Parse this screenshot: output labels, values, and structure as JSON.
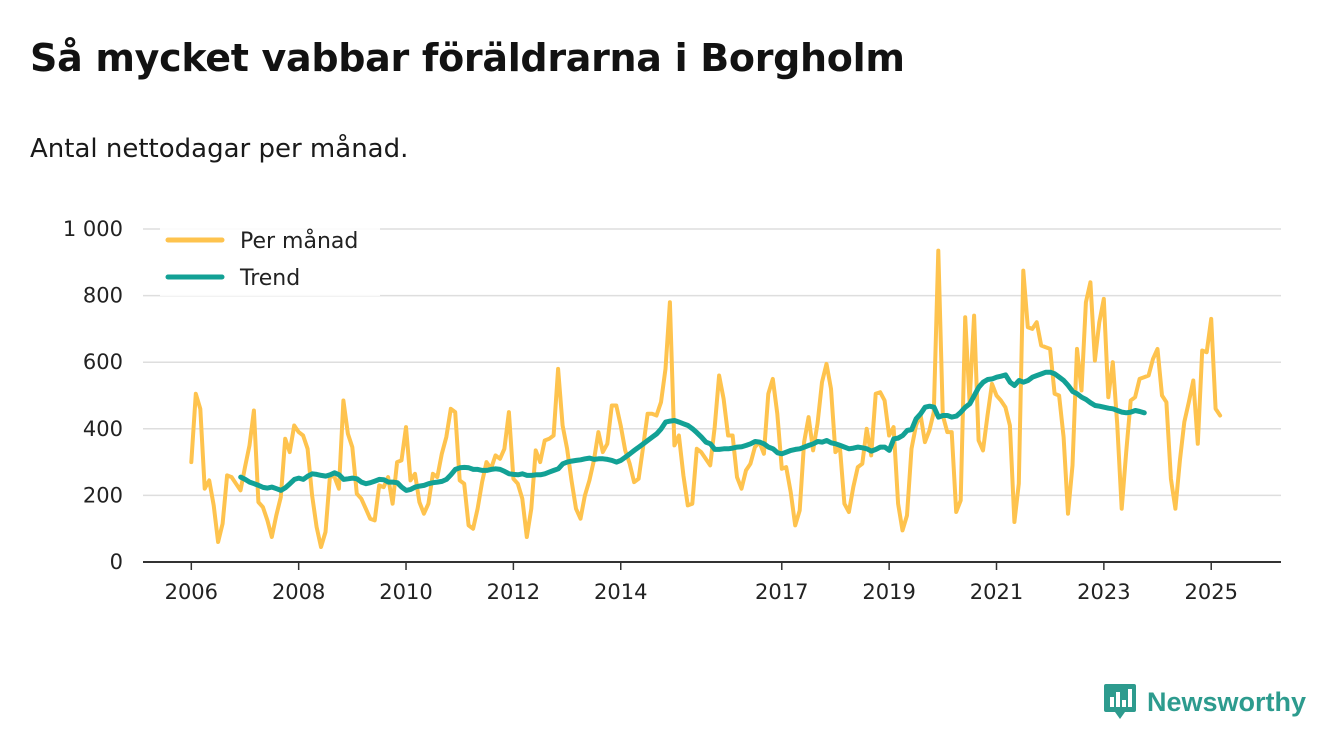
{
  "header": {
    "title": "Så mycket vabbar föräldrarna i Borgholm",
    "subtitle": "Antal nettodagar per månad."
  },
  "brand": {
    "name": "Newsworthy",
    "icon": "chart-bubble-icon"
  },
  "colors": {
    "per_month": "#fec34e",
    "trend": "#12a195",
    "grid": "#dedede",
    "axis": "#333333",
    "brand": "#2d9b8e"
  },
  "chart_data": {
    "type": "line",
    "title": "Så mycket vabbar föräldrarna i Borgholm",
    "subtitle": "Antal nettodagar per månad.",
    "xlabel": "",
    "ylabel": "",
    "xlim": [
      2005.1,
      2026.3
    ],
    "ylim": [
      0,
      1000
    ],
    "y_ticks": [
      0,
      200,
      400,
      600,
      800,
      1000
    ],
    "y_tick_labels": [
      "0",
      "200",
      "400",
      "600",
      "800",
      "1 000"
    ],
    "x_ticks": [
      2006,
      2008,
      2010,
      2012,
      2014,
      2017,
      2019,
      2021,
      2023,
      2025
    ],
    "x_tick_labels": [
      "2006",
      "2008",
      "2010",
      "2012",
      "2014",
      "2017",
      "2019",
      "2021",
      "2023",
      "2025"
    ],
    "grid": true,
    "legend": {
      "position": "top-left",
      "entries": [
        "Per månad",
        "Trend"
      ]
    },
    "series": [
      {
        "name": "Per månad",
        "x_start": 2006.0,
        "step": 0.08333,
        "values": [
          300,
          505,
          460,
          220,
          245,
          170,
          60,
          115,
          260,
          255,
          235,
          215,
          285,
          350,
          455,
          180,
          165,
          125,
          75,
          140,
          195,
          370,
          330,
          410,
          390,
          380,
          340,
          200,
          105,
          45,
          90,
          260,
          255,
          220,
          485,
          385,
          345,
          205,
          190,
          160,
          130,
          125,
          230,
          225,
          255,
          175,
          300,
          305,
          405,
          245,
          265,
          180,
          145,
          175,
          265,
          255,
          325,
          375,
          460,
          450,
          245,
          235,
          110,
          100,
          160,
          240,
          300,
          280,
          320,
          310,
          340,
          450,
          250,
          235,
          190,
          75,
          160,
          335,
          300,
          365,
          370,
          380,
          580,
          410,
          340,
          245,
          160,
          130,
          200,
          245,
          305,
          390,
          330,
          355,
          470,
          470,
          410,
          335,
          295,
          240,
          250,
          345,
          445,
          445,
          440,
          480,
          580,
          780,
          350,
          380,
          260,
          170,
          175,
          340,
          330,
          310,
          290,
          405,
          560,
          490,
          380,
          380,
          255,
          220,
          275,
          295,
          345,
          360,
          325,
          505,
          550,
          445,
          280,
          285,
          210,
          110,
          155,
          360,
          435,
          335,
          415,
          540,
          595,
          520,
          330,
          345,
          175,
          150,
          225,
          285,
          295,
          400,
          320,
          505,
          510,
          485,
          380,
          405,
          175,
          95,
          140,
          340,
          410,
          445,
          360,
          395,
          450,
          935,
          440,
          390,
          390,
          150,
          185,
          735,
          480,
          740,
          365,
          335,
          440,
          535,
          500,
          485,
          465,
          410,
          120,
          235,
          875,
          705,
          700,
          720,
          650,
          645,
          640,
          505,
          500,
          375,
          145,
          290,
          640,
          515,
          780,
          840,
          605,
          720,
          790,
          495,
          600,
          415,
          160,
          330,
          485,
          495,
          550,
          555,
          560,
          610,
          640,
          500,
          480,
          250,
          160,
          305,
          420,
          480,
          545,
          355,
          635,
          630,
          730,
          460,
          440
        ]
      },
      {
        "name": "Trend",
        "x_start": 2006.92,
        "step": 0.08333,
        "values": [
          255,
          248,
          240,
          235,
          230,
          224,
          222,
          225,
          220,
          215,
          223,
          235,
          248,
          252,
          248,
          258,
          265,
          263,
          260,
          258,
          262,
          268,
          262,
          248,
          250,
          252,
          250,
          240,
          235,
          238,
          243,
          248,
          247,
          240,
          240,
          238,
          225,
          215,
          218,
          225,
          228,
          230,
          235,
          238,
          240,
          242,
          248,
          262,
          278,
          283,
          284,
          283,
          278,
          278,
          275,
          275,
          278,
          280,
          278,
          272,
          265,
          263,
          262,
          265,
          260,
          260,
          262,
          262,
          265,
          270,
          275,
          280,
          295,
          300,
          303,
          305,
          307,
          310,
          312,
          308,
          310,
          310,
          308,
          305,
          300,
          305,
          315,
          325,
          335,
          345,
          355,
          365,
          375,
          385,
          400,
          420,
          423,
          425,
          420,
          415,
          410,
          400,
          388,
          375,
          360,
          355,
          338,
          338,
          340,
          340,
          342,
          345,
          346,
          350,
          355,
          362,
          360,
          355,
          345,
          340,
          328,
          325,
          330,
          335,
          338,
          340,
          345,
          350,
          355,
          362,
          360,
          365,
          358,
          355,
          350,
          345,
          340,
          342,
          345,
          343,
          340,
          333,
          338,
          345,
          345,
          335,
          370,
          372,
          380,
          395,
          398,
          430,
          445,
          465,
          468,
          465,
          435,
          440,
          440,
          435,
          438,
          450,
          465,
          475,
          500,
          525,
          540,
          548,
          550,
          555,
          558,
          562,
          540,
          530,
          545,
          540,
          545,
          555,
          560,
          565,
          570,
          570,
          565,
          555,
          545,
          530,
          512,
          505,
          495,
          488,
          478,
          470,
          468,
          465,
          462,
          460,
          455,
          450,
          448,
          450,
          455,
          452,
          448
        ]
      }
    ]
  }
}
